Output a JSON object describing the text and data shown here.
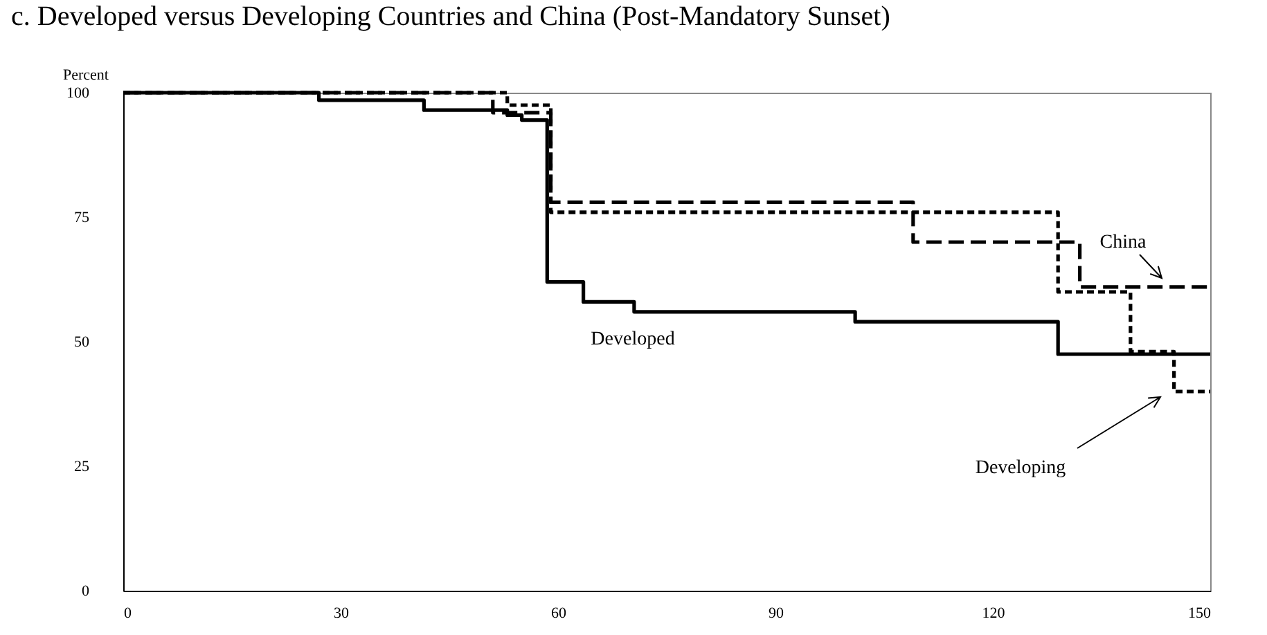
{
  "chart_data": {
    "type": "step",
    "title": "c. Developed versus Developing Countries and China (Post-Mandatory Sunset)",
    "ylabel": "Percent",
    "xlim": [
      0,
      150
    ],
    "xticks": [
      0,
      30,
      60,
      90,
      120,
      150
    ],
    "ylim": [
      0,
      100
    ],
    "yticks": [
      0,
      25,
      50,
      75,
      100
    ],
    "grid": false,
    "legend": false,
    "series": [
      {
        "name": "Developed",
        "color": "#000000",
        "line_style": "solid",
        "x": [
          0,
          27,
          41.5,
          53,
          55,
          58.5,
          63.5,
          70.5,
          101,
          129,
          150
        ],
        "values": [
          100,
          98.5,
          96.5,
          95.5,
          94.5,
          62,
          58,
          56,
          54,
          47.5,
          47.5
        ]
      },
      {
        "name": "Developing",
        "color": "#000000",
        "line_style": "dashed",
        "x": [
          0,
          53,
          59,
          129,
          139,
          145,
          150
        ],
        "values": [
          100,
          97.5,
          76,
          60,
          48,
          40,
          40
        ]
      },
      {
        "name": "China",
        "color": "#000000",
        "line_style": "dashed",
        "x": [
          0,
          51,
          59,
          109,
          132,
          150
        ],
        "values": [
          100,
          96,
          78,
          70,
          61,
          61
        ]
      }
    ]
  }
}
